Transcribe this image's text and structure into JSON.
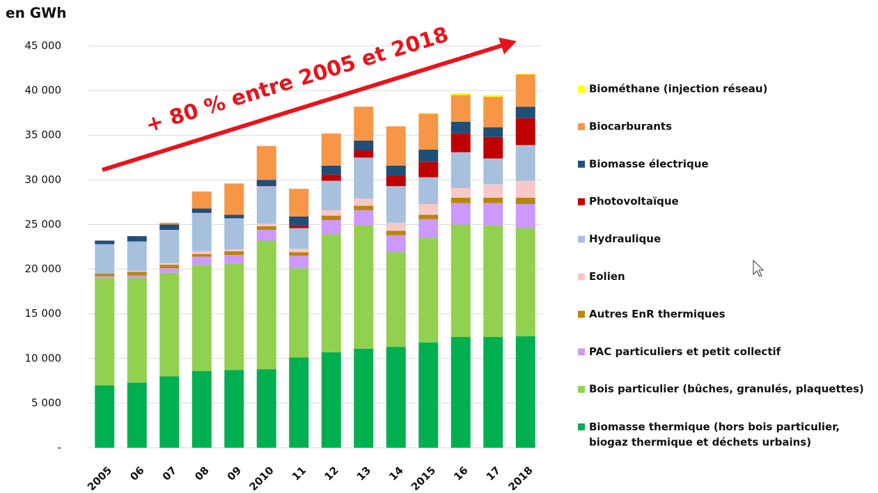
{
  "chart_data": {
    "type": "stacked_bar",
    "y_axis_title": "en GWh",
    "annotation": "+ 80 % entre 2005 et 2018",
    "categories": [
      "2005",
      "06",
      "07",
      "08",
      "09",
      "2010",
      "11",
      "12",
      "13",
      "14",
      "2015",
      "16",
      "17",
      "2018"
    ],
    "ylim": [
      0,
      45000
    ],
    "yticks": [
      {
        "value": 0,
        "label": "-"
      },
      {
        "value": 5000,
        "label": "5 000"
      },
      {
        "value": 10000,
        "label": "10 000"
      },
      {
        "value": 15000,
        "label": "15 000"
      },
      {
        "value": 20000,
        "label": "20 000"
      },
      {
        "value": 25000,
        "label": "25 000"
      },
      {
        "value": 30000,
        "label": "30 000"
      },
      {
        "value": 35000,
        "label": "35 000"
      },
      {
        "value": 40000,
        "label": "40 000"
      },
      {
        "value": 45000,
        "label": "45 000"
      }
    ],
    "grid": true,
    "legend": "right",
    "series": [
      {
        "name": "Biomasse thermique (hors bois particulier,\nbiogaz thermique et déchets urbains)",
        "color": "#00b050",
        "values": [
          7000,
          7300,
          8000,
          8600,
          8700,
          8800,
          10100,
          10700,
          11100,
          11300,
          11800,
          12400,
          12400,
          12500
        ]
      },
      {
        "name": "Bois particulier (bûches, granulés, plaquettes)",
        "color": "#92d050",
        "values": [
          12000,
          11700,
          11600,
          11900,
          11900,
          14400,
          10000,
          13200,
          13800,
          10600,
          11700,
          12600,
          12500,
          12100
        ]
      },
      {
        "name": "PAC particuliers et petit collectif",
        "color": "#cc99ff",
        "values": [
          200,
          300,
          500,
          900,
          1000,
          1200,
          1400,
          1600,
          1700,
          1900,
          2100,
          2400,
          2500,
          2700
        ]
      },
      {
        "name": "Autres EnR thermiques",
        "color": "#b8860b",
        "values": [
          300,
          400,
          400,
          300,
          400,
          400,
          400,
          500,
          500,
          500,
          500,
          600,
          600,
          700
        ]
      },
      {
        "name": "Eolien",
        "color": "#f8c8c8",
        "values": [
          0,
          100,
          200,
          300,
          200,
          300,
          400,
          600,
          800,
          900,
          1200,
          1100,
          1500,
          1900
        ]
      },
      {
        "name": "Hydraulique",
        "color": "#a7c0de",
        "values": [
          3300,
          3300,
          3700,
          4300,
          3500,
          4200,
          2300,
          3300,
          4600,
          4100,
          3000,
          4000,
          2900,
          4000
        ]
      },
      {
        "name": "Photovoltaïque",
        "color": "#c00000",
        "values": [
          0,
          0,
          0,
          0,
          0,
          100,
          300,
          700,
          800,
          1200,
          1700,
          2100,
          2400,
          3000
        ]
      },
      {
        "name": "Biomasse électrique",
        "color": "#1f4e79",
        "values": [
          400,
          600,
          600,
          500,
          400,
          600,
          1000,
          1000,
          1100,
          1100,
          1400,
          1300,
          1100,
          1300
        ]
      },
      {
        "name": "Biocarburants",
        "color": "#f79646",
        "values": [
          0,
          0,
          200,
          1900,
          3500,
          3800,
          3100,
          3600,
          3800,
          4400,
          4000,
          3000,
          3400,
          3600
        ]
      },
      {
        "name": "Biométhane (injection réseau)",
        "color": "#ffff00",
        "values": [
          0,
          0,
          0,
          0,
          0,
          0,
          0,
          0,
          0,
          0,
          100,
          200,
          200,
          100
        ]
      }
    ]
  }
}
